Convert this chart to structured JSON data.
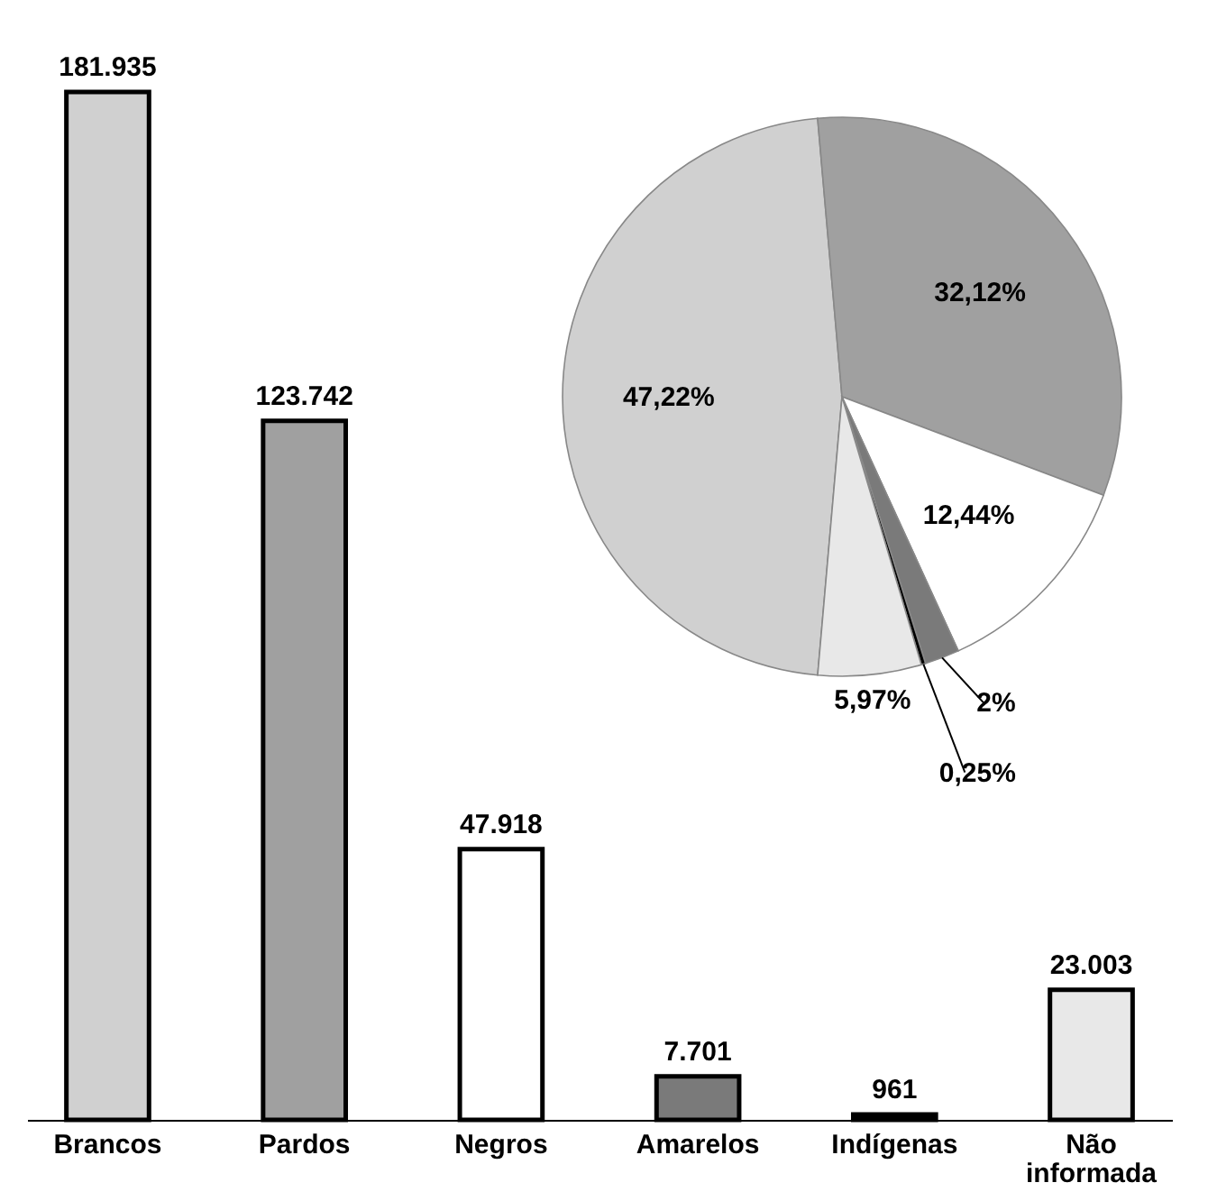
{
  "chart_data": [
    {
      "type": "bar",
      "categories": [
        "Brancos",
        "Pardos",
        "Negros",
        "Amarelos",
        "Indígenas",
        "Não informada"
      ],
      "values": [
        181935,
        123742,
        47918,
        7701,
        961,
        23003
      ],
      "colors": [
        "#d0d0d0",
        "#a0a0a0",
        "#ffffff",
        "#7a7a7a",
        "#000000",
        "#e8e8e8"
      ],
      "value_labels": [
        "181.935",
        "123.742",
        "47.918",
        "7.701",
        "961",
        "23.003"
      ]
    },
    {
      "type": "pie",
      "categories": [
        null,
        null,
        null,
        null,
        null,
        null
      ],
      "values": [
        47.22,
        32.12,
        12.44,
        2,
        0.25,
        5.97
      ],
      "colors": [
        "#d0d0d0",
        "#a0a0a0",
        "#ffffff",
        "#7a7a7a",
        "#000000",
        "#e8e8e8"
      ],
      "value_labels": [
        "47,22%",
        "32,12%",
        "12,44%",
        "2%",
        "0,25%",
        "5,97%"
      ]
    }
  ]
}
